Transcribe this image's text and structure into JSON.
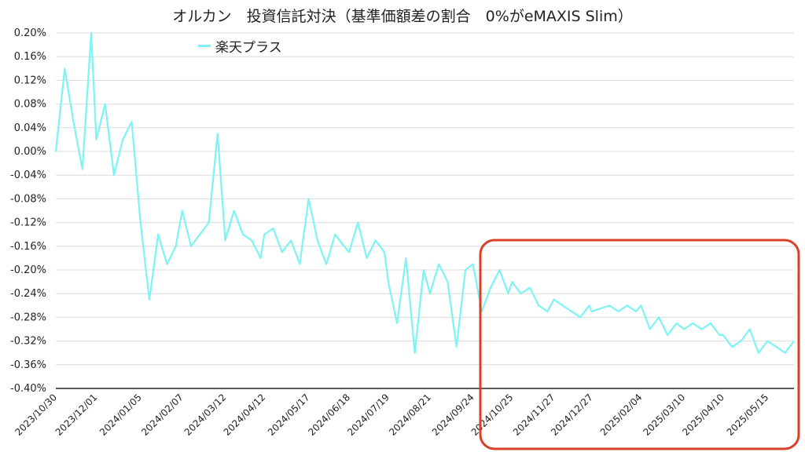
{
  "chart_data": {
    "type": "line",
    "title": "オルカン　投資信託対決（基準価額差の割合　0%がeMAXIS Slim）",
    "xlabel": "",
    "ylabel": "",
    "ylim": [
      -0.4,
      0.2
    ],
    "ytick_values": [
      0.2,
      0.16,
      0.12,
      0.08,
      0.04,
      0.0,
      -0.04,
      -0.08,
      -0.12,
      -0.16,
      -0.2,
      -0.24,
      -0.28,
      -0.32,
      -0.36,
      -0.4
    ],
    "yticks": [
      "0.20%",
      "0.16%",
      "0.12%",
      "0.08%",
      "0.04%",
      "0.00%",
      "-0.04%",
      "-0.08%",
      "-0.12%",
      "-0.16%",
      "-0.20%",
      "-0.24%",
      "-0.28%",
      "-0.32%",
      "-0.36%",
      "-0.40%"
    ],
    "x_tick_labels": [
      "2023/10/30",
      "2023/12/01",
      "2024/01/05",
      "2024/02/07",
      "2024/03/12",
      "2024/04/12",
      "2024/05/17",
      "2024/06/18",
      "2024/07/19",
      "2024/08/21",
      "2024/09/24",
      "2024/10/25",
      "2024/11/27",
      "2024/12/27",
      "2025/02/04",
      "2025/03/10",
      "2025/04/10",
      "2025/05/15"
    ],
    "grid": "horizontal",
    "legend_position": "top-left",
    "series": [
      {
        "name": "楽天プラス",
        "color": "#7DF3F3",
        "x": [
          "2023/10/30",
          "2023/11/06",
          "2023/11/13",
          "2023/11/20",
          "2023/11/27",
          "2023/12/01",
          "2023/12/08",
          "2023/12/15",
          "2023/12/22",
          "2023/12/29",
          "2024/01/05",
          "2024/01/12",
          "2024/01/19",
          "2024/01/26",
          "2024/02/02",
          "2024/02/07",
          "2024/02/14",
          "2024/02/21",
          "2024/02/28",
          "2024/03/06",
          "2024/03/12",
          "2024/03/19",
          "2024/03/26",
          "2024/04/02",
          "2024/04/09",
          "2024/04/12",
          "2024/04/19",
          "2024/04/26",
          "2024/05/03",
          "2024/05/10",
          "2024/05/17",
          "2024/05/24",
          "2024/05/31",
          "2024/06/07",
          "2024/06/14",
          "2024/06/18",
          "2024/06/25",
          "2024/07/02",
          "2024/07/09",
          "2024/07/16",
          "2024/07/19",
          "2024/07/26",
          "2024/08/02",
          "2024/08/09",
          "2024/08/16",
          "2024/08/21",
          "2024/08/28",
          "2024/09/04",
          "2024/09/11",
          "2024/09/18",
          "2024/09/24",
          "2024/10/01",
          "2024/10/08",
          "2024/10/15",
          "2024/10/22",
          "2024/10/25",
          "2024/11/01",
          "2024/11/08",
          "2024/11/15",
          "2024/11/22",
          "2024/11/27",
          "2024/12/04",
          "2024/12/11",
          "2024/12/18",
          "2024/12/25",
          "2024/12/27",
          "2025/01/10",
          "2025/01/17",
          "2025/01/24",
          "2025/01/31",
          "2025/02/04",
          "2025/02/11",
          "2025/02/18",
          "2025/02/25",
          "2025/03/04",
          "2025/03/10",
          "2025/03/17",
          "2025/03/24",
          "2025/03/31",
          "2025/04/07",
          "2025/04/10",
          "2025/04/17",
          "2025/04/24",
          "2025/05/01",
          "2025/05/08",
          "2025/05/15",
          "2025/05/22",
          "2025/05/29",
          "2025/06/05"
        ],
        "values": [
          0.0,
          0.14,
          0.05,
          -0.03,
          0.2,
          0.02,
          0.08,
          -0.04,
          0.02,
          0.05,
          -0.12,
          -0.25,
          -0.14,
          -0.19,
          -0.16,
          -0.1,
          -0.16,
          -0.14,
          -0.12,
          0.03,
          -0.15,
          -0.1,
          -0.14,
          -0.15,
          -0.18,
          -0.14,
          -0.13,
          -0.17,
          -0.15,
          -0.19,
          -0.08,
          -0.15,
          -0.19,
          -0.14,
          -0.16,
          -0.17,
          -0.12,
          -0.18,
          -0.15,
          -0.17,
          -0.22,
          -0.29,
          -0.18,
          -0.34,
          -0.2,
          -0.24,
          -0.19,
          -0.22,
          -0.33,
          -0.2,
          -0.19,
          -0.27,
          -0.23,
          -0.2,
          -0.24,
          -0.22,
          -0.24,
          -0.23,
          -0.26,
          -0.27,
          -0.25,
          -0.26,
          -0.27,
          -0.28,
          -0.26,
          -0.27,
          -0.26,
          -0.27,
          -0.26,
          -0.27,
          -0.26,
          -0.3,
          -0.28,
          -0.31,
          -0.29,
          -0.3,
          -0.29,
          -0.3,
          -0.29,
          -0.31,
          -0.31,
          -0.33,
          -0.32,
          -0.3,
          -0.34,
          -0.32,
          -0.33,
          -0.34,
          -0.32
        ]
      }
    ]
  },
  "annotation": {
    "type": "highlight-box",
    "color": "#D9402A"
  }
}
